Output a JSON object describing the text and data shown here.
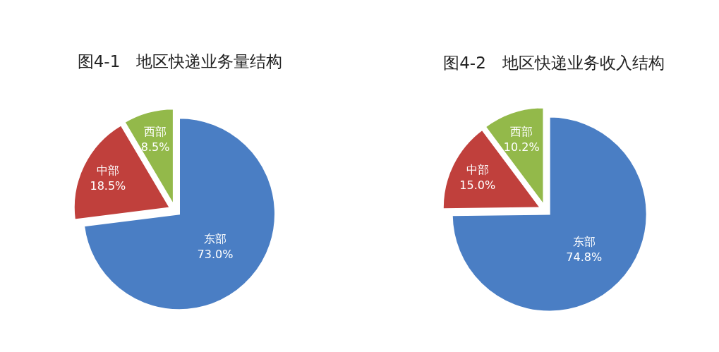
{
  "chart_data": [
    {
      "type": "pie",
      "title": "图4-1　地区快递业务量结构",
      "categories": [
        "东部",
        "中部",
        "西部"
      ],
      "values": [
        73.0,
        18.5,
        8.5
      ],
      "value_labels": [
        "73.0%",
        "18.5%",
        "8.5%"
      ],
      "colors": [
        "#4a7ec4",
        "#c0403c",
        "#93b94a"
      ]
    },
    {
      "type": "pie",
      "title": "图4-2　地区快递业务收入结构",
      "categories": [
        "东部",
        "中部",
        "西部"
      ],
      "values": [
        74.8,
        15.0,
        10.2
      ],
      "value_labels": [
        "74.8%",
        "15.0%",
        "10.2%"
      ],
      "colors": [
        "#4a7ec4",
        "#c0403c",
        "#93b94a"
      ]
    }
  ]
}
